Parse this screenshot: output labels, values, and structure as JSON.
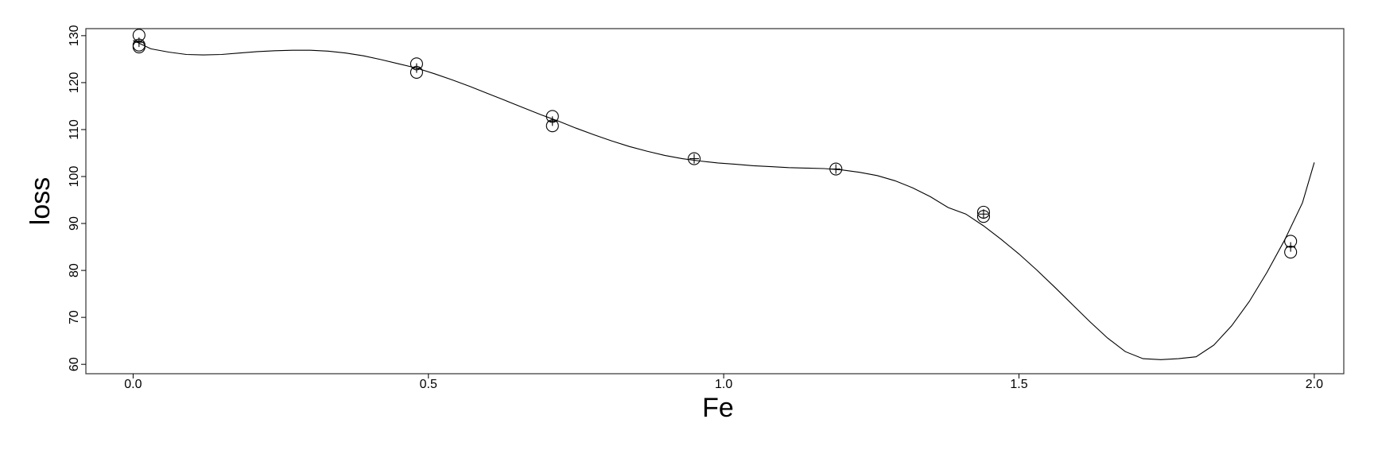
{
  "chart_data": {
    "type": "scatter",
    "xlabel": "Fe",
    "ylabel": "loss",
    "xlim": [
      -0.08,
      2.05
    ],
    "ylim": [
      58,
      131.5
    ],
    "x_ticks": [
      0.0,
      0.5,
      1.0,
      1.5,
      2.0
    ],
    "x_tick_labels": [
      "0.0",
      "0.5",
      "1.0",
      "1.5",
      "2.0"
    ],
    "y_ticks": [
      60,
      70,
      80,
      90,
      100,
      110,
      120,
      130
    ],
    "y_tick_labels": [
      "60",
      "70",
      "80",
      "90",
      "100",
      "110",
      "120",
      "130"
    ],
    "grid": false,
    "series": [
      {
        "kind": "points",
        "marker": "circle",
        "x": [
          0.01,
          0.01,
          0.01,
          0.48,
          0.48,
          0.71,
          0.71,
          0.95,
          1.19,
          1.44,
          1.44,
          1.96,
          1.96
        ],
        "y": [
          127.6,
          128.0,
          130.1,
          124.0,
          122.2,
          112.8,
          110.8,
          103.8,
          101.6,
          92.4,
          91.5,
          86.2,
          83.9
        ]
      },
      {
        "kind": "points",
        "marker": "plus",
        "x": [
          0.01,
          0.48,
          0.71,
          0.95,
          1.19,
          1.44,
          1.96
        ],
        "y": [
          128.6,
          123.1,
          111.8,
          103.8,
          101.6,
          92.0,
          85.0
        ]
      },
      {
        "kind": "line",
        "x": [
          0.0,
          0.03,
          0.06,
          0.09,
          0.12,
          0.15,
          0.18,
          0.21,
          0.24,
          0.27,
          0.3,
          0.33,
          0.36,
          0.39,
          0.42,
          0.45,
          0.48,
          0.51,
          0.54,
          0.57,
          0.6,
          0.63,
          0.66,
          0.69,
          0.72,
          0.75,
          0.78,
          0.81,
          0.84,
          0.87,
          0.9,
          0.93,
          0.96,
          0.99,
          1.02,
          1.05,
          1.08,
          1.11,
          1.14,
          1.17,
          1.2,
          1.23,
          1.26,
          1.29,
          1.32,
          1.35,
          1.38,
          1.41,
          1.44,
          1.47,
          1.5,
          1.53,
          1.56,
          1.59,
          1.62,
          1.65,
          1.68,
          1.71,
          1.74,
          1.77,
          1.8,
          1.83,
          1.86,
          1.89,
          1.92,
          1.95,
          1.98,
          2.0
        ],
        "y": [
          129.0,
          127.2,
          126.5,
          126.0,
          125.9,
          126.0,
          126.3,
          126.6,
          126.8,
          126.9,
          126.9,
          126.7,
          126.3,
          125.7,
          124.9,
          124.0,
          123.1,
          121.9,
          120.6,
          119.2,
          117.7,
          116.2,
          114.7,
          113.2,
          111.8,
          110.3,
          108.9,
          107.6,
          106.4,
          105.4,
          104.5,
          103.8,
          103.3,
          102.9,
          102.6,
          102.3,
          102.1,
          101.9,
          101.8,
          101.7,
          101.4,
          100.9,
          100.2,
          99.1,
          97.6,
          95.7,
          93.4,
          92.0,
          89.5,
          86.6,
          83.5,
          80.1,
          76.5,
          72.8,
          69.1,
          65.6,
          62.7,
          61.2,
          61.0,
          61.2,
          61.6,
          64.1,
          68.2,
          73.4,
          79.6,
          86.5,
          94.4,
          103.0
        ]
      }
    ]
  }
}
